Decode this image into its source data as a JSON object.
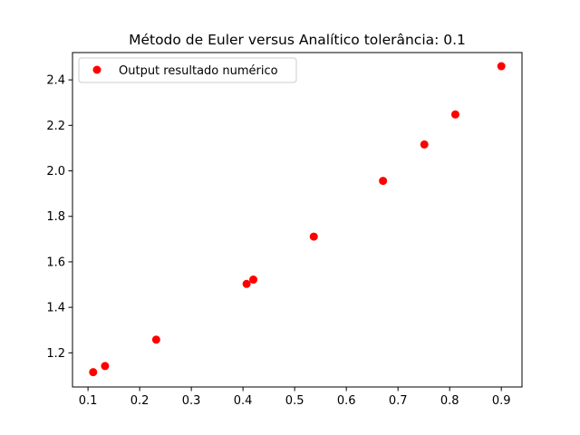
{
  "chart_data": {
    "type": "scatter",
    "title": "Método de Euler versus Analítico  tolerância: 0.1",
    "xlabel": "",
    "ylabel": "",
    "xlim": [
      0.07,
      0.94
    ],
    "ylim": [
      1.05,
      2.52
    ],
    "xticks": [
      0.1,
      0.2,
      0.3,
      0.4,
      0.5,
      0.6,
      0.7,
      0.8,
      0.9
    ],
    "xtick_labels": [
      "0.1",
      "0.2",
      "0.3",
      "0.4",
      "0.5",
      "0.6",
      "0.7",
      "0.8",
      "0.9"
    ],
    "yticks": [
      1.2,
      1.4,
      1.6,
      1.8,
      2.0,
      2.2,
      2.4
    ],
    "ytick_labels": [
      "1.2",
      "1.4",
      "1.6",
      "1.8",
      "2.0",
      "2.2",
      "2.4"
    ],
    "grid": false,
    "legend_position": "top-left",
    "series": [
      {
        "name": "Output resultado numérico",
        "color": "#ff0000",
        "marker": "circle",
        "points": [
          {
            "x": 0.11,
            "y": 1.115
          },
          {
            "x": 0.133,
            "y": 1.142
          },
          {
            "x": 0.232,
            "y": 1.258
          },
          {
            "x": 0.407,
            "y": 1.503
          },
          {
            "x": 0.42,
            "y": 1.522
          },
          {
            "x": 0.537,
            "y": 1.711
          },
          {
            "x": 0.671,
            "y": 1.956
          },
          {
            "x": 0.751,
            "y": 2.116
          },
          {
            "x": 0.811,
            "y": 2.248
          },
          {
            "x": 0.9,
            "y": 2.46
          }
        ]
      }
    ]
  }
}
